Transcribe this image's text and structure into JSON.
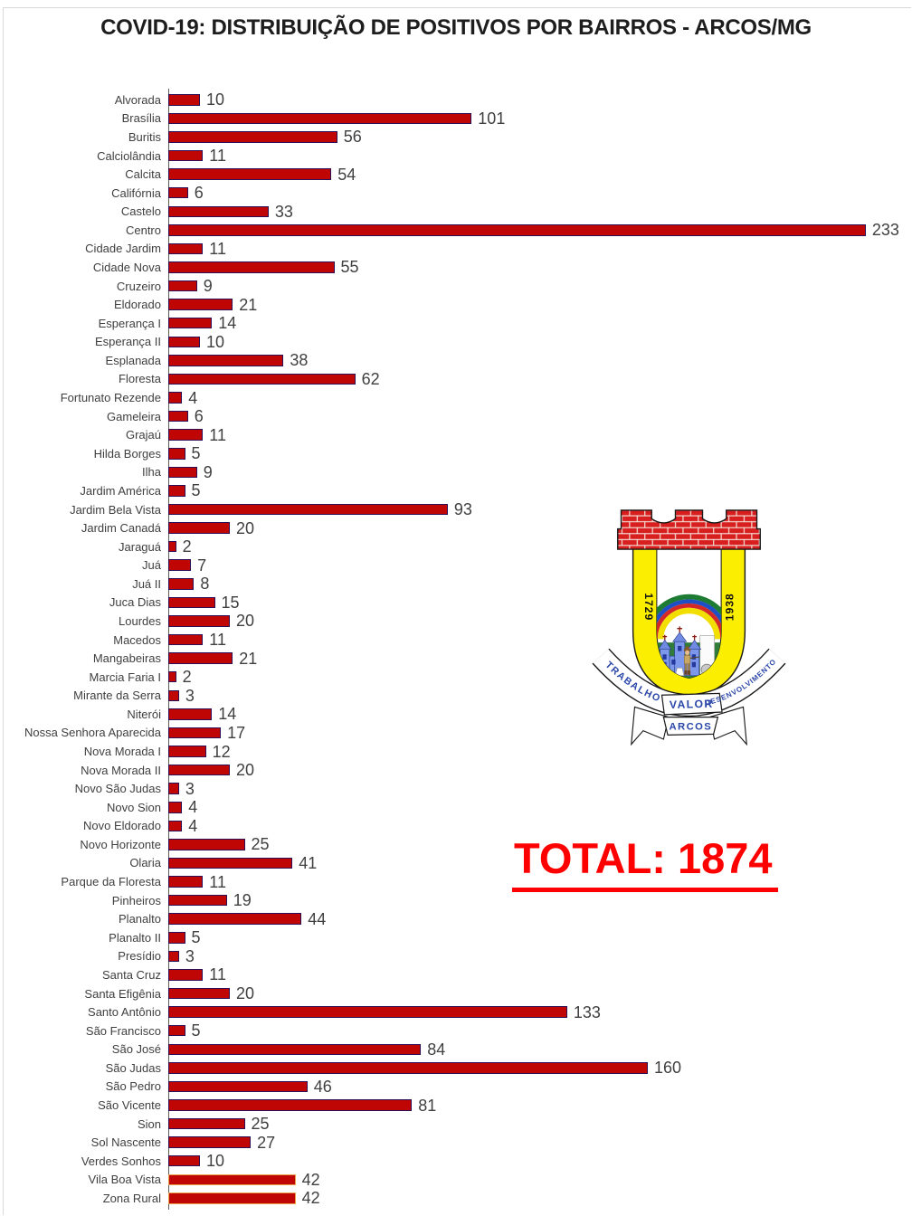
{
  "title": "COVID-19: DISTRIBUIÇÃO DE POSITIVOS POR BAIRROS - ARCOS/MG",
  "total_label": "TOTAL: 1874",
  "colors": {
    "bar_fill": "#C00505",
    "bar_border": "#2E0F55",
    "bar_border_highlight": "#EDA04B",
    "total_text": "#FF0000",
    "label_text": "#3F3F3F",
    "value_text": "#404040"
  },
  "chart_data": {
    "type": "bar",
    "orientation": "horizontal",
    "title": "COVID-19: DISTRIBUIÇÃO DE POSITIVOS POR BAIRROS - ARCOS/MG",
    "xlabel": "",
    "ylabel": "",
    "xlim": [
      0,
      245
    ],
    "grid": false,
    "legend": false,
    "value_labels": true,
    "total": 1874,
    "categories": [
      "Alvorada",
      "Brasília",
      "Buritis",
      "Calciolândia",
      "Calcita",
      "Califórnia",
      "Castelo",
      "Centro",
      "Cidade Jardim",
      "Cidade Nova",
      "Cruzeiro",
      "Eldorado",
      "Esperança I",
      "Esperança II",
      "Esplanada",
      "Floresta",
      "Fortunato Rezende",
      "Gameleira",
      "Grajaú",
      "Hilda Borges",
      "Ilha",
      "Jardim América",
      "Jardim Bela Vista",
      "Jardim Canadá",
      "Jaraguá",
      "Juá",
      "Juá II",
      "Juca Dias",
      "Lourdes",
      "Macedos",
      "Mangabeiras",
      "Marcia Faria I",
      "Mirante da Serra",
      "Niterói",
      "Nossa Senhora Aparecida",
      "Nova Morada I",
      "Nova Morada II",
      "Novo São Judas",
      "Novo Sion",
      "Novo Eldorado",
      "Novo Horizonte",
      "Olaria",
      "Parque da Floresta",
      "Pinheiros",
      "Planalto",
      "Planalto II",
      "Presídio",
      "Santa Cruz",
      "Santa Efigênia",
      "Santo Antônio",
      "São Francisco",
      "São José",
      "São Judas",
      "São Pedro",
      "São Vicente",
      "Sion",
      "Sol Nascente",
      "Verdes Sonhos",
      "Vila Boa Vista",
      "Zona Rural"
    ],
    "values": [
      10,
      101,
      56,
      11,
      54,
      6,
      33,
      233,
      11,
      55,
      9,
      21,
      14,
      10,
      38,
      62,
      4,
      6,
      11,
      5,
      9,
      5,
      93,
      20,
      2,
      7,
      8,
      15,
      20,
      11,
      21,
      2,
      3,
      14,
      17,
      12,
      20,
      3,
      4,
      4,
      25,
      41,
      11,
      19,
      44,
      5,
      3,
      11,
      20,
      133,
      5,
      84,
      160,
      46,
      81,
      25,
      27,
      10,
      42,
      42
    ],
    "highlighted_categories": [
      "Vila Boa Vista",
      "Zona Rural"
    ]
  },
  "crest": {
    "name": "Brasão de Arcos",
    "year_left": "1729",
    "year_right": "1938",
    "motto_left": "TRABALHO",
    "motto_right": "DESENVOLVIMENTO",
    "motto_center": "VALOR",
    "city": "ARCOS"
  }
}
